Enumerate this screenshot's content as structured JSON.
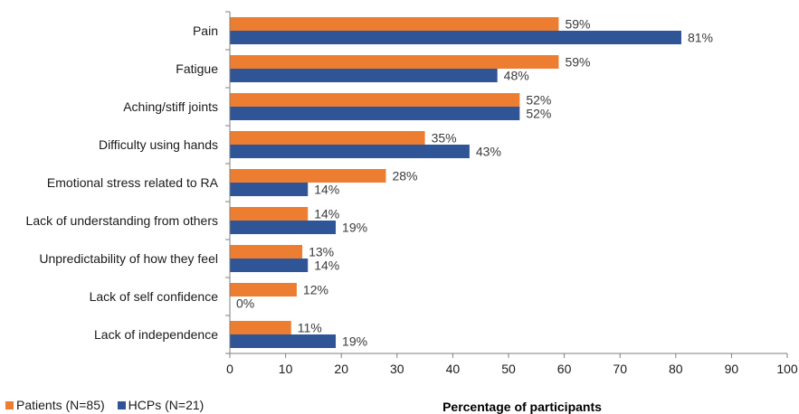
{
  "chart_data": {
    "type": "bar",
    "orientation": "horizontal",
    "categories": [
      "Pain",
      "Fatigue",
      "Aching/stiff joints",
      "Difficulty using hands",
      "Emotional stress related to RA",
      "Lack of understanding from others",
      "Unpredictability of how they feel",
      "Lack of self confidence",
      "Lack of independence"
    ],
    "series": [
      {
        "name": "Patients (N=85)",
        "color": "#ED7D31",
        "values": [
          59,
          59,
          52,
          35,
          28,
          14,
          13,
          12,
          11
        ],
        "labels": [
          "59%",
          "59%",
          "52%",
          "35%",
          "28%",
          "14%",
          "13%",
          "12%",
          "11%"
        ]
      },
      {
        "name": "HCPs (N=21)",
        "color": "#2F5597",
        "values": [
          81,
          48,
          52,
          43,
          14,
          19,
          14,
          0,
          19
        ],
        "labels": [
          "81%",
          "48%",
          "52%",
          "43%",
          "14%",
          "19%",
          "14%",
          "0%",
          "19%"
        ]
      }
    ],
    "xlabel": "Percentage of participants",
    "xlim": [
      0,
      100
    ],
    "xticks": [
      "0",
      "10",
      "20",
      "30",
      "40",
      "50",
      "60",
      "70",
      "80",
      "90",
      "100"
    ],
    "legend_position": "bottom-left",
    "grid": false
  }
}
